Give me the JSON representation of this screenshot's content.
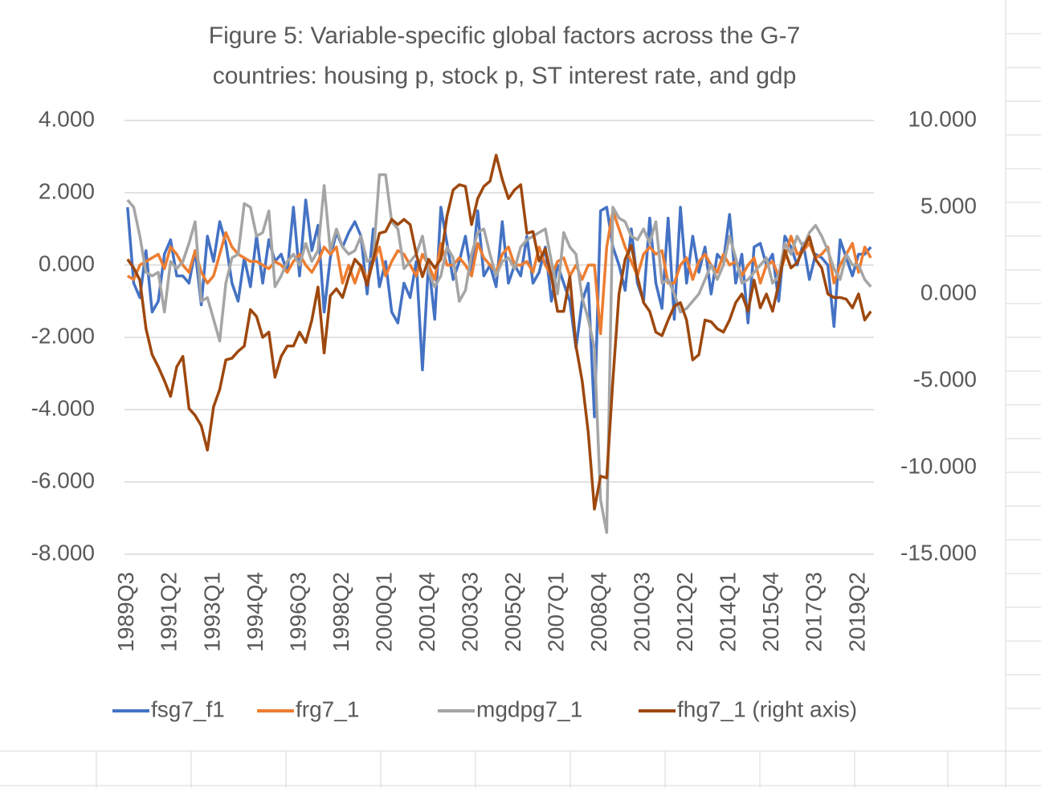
{
  "chart_data": {
    "type": "line",
    "title": [
      "Figure 5: Variable-specific global factors across the G-7",
      "countries: housing p, stock p, ST interest rate, and gdp"
    ],
    "categories": [
      "1989Q3",
      null,
      null,
      null,
      null,
      null,
      null,
      "1991Q2",
      null,
      null,
      null,
      null,
      null,
      null,
      "1993Q1",
      null,
      null,
      null,
      null,
      null,
      null,
      "1994Q4",
      null,
      null,
      null,
      null,
      null,
      null,
      "1996Q3",
      null,
      null,
      null,
      null,
      null,
      null,
      "1998Q2",
      null,
      null,
      null,
      null,
      null,
      null,
      "2000Q1",
      null,
      null,
      null,
      null,
      null,
      null,
      "2001Q4",
      null,
      null,
      null,
      null,
      null,
      null,
      "2003Q3",
      null,
      null,
      null,
      null,
      null,
      null,
      "2005Q2",
      null,
      null,
      null,
      null,
      null,
      null,
      "2007Q1",
      null,
      null,
      null,
      null,
      null,
      null,
      "2008Q4",
      null,
      null,
      null,
      null,
      null,
      null,
      "2010Q3",
      null,
      null,
      null,
      null,
      null,
      null,
      "2012Q2",
      null,
      null,
      null,
      null,
      null,
      null,
      "2014Q1",
      null,
      null,
      null,
      null,
      null,
      null,
      "2015Q4",
      null,
      null,
      null,
      null,
      null,
      null,
      "2017Q3",
      null,
      null,
      null,
      null,
      null,
      null,
      "2019Q2",
      null,
      null
    ],
    "ylim": [
      -8,
      4
    ],
    "yticks": [
      {
        "value": -8,
        "label": "-8.000"
      },
      {
        "value": -6,
        "label": "-6.000"
      },
      {
        "value": -4,
        "label": "-4.000"
      },
      {
        "value": -2,
        "label": "-2.000"
      },
      {
        "value": 0,
        "label": "0.000"
      },
      {
        "value": 2,
        "label": "2.000"
      },
      {
        "value": 4,
        "label": "4.000"
      }
    ],
    "y2lim": [
      -15,
      10
    ],
    "y2ticks": [
      {
        "value": -15,
        "label": "-15.000"
      },
      {
        "value": -10,
        "label": "-10.000"
      },
      {
        "value": -5,
        "label": "-5.000"
      },
      {
        "value": 0,
        "label": "0.000"
      },
      {
        "value": 5,
        "label": "5.000"
      },
      {
        "value": 10,
        "label": "10.000"
      }
    ],
    "grid": true,
    "legend": "bottom",
    "series": [
      {
        "name": "fsg7_f1",
        "color": "#4472c4",
        "values": [
          1.6,
          -0.5,
          -0.9,
          0.4,
          -1.3,
          -1.0,
          0.3,
          0.7,
          -0.3,
          -0.3,
          -0.5,
          0.4,
          -1.1,
          0.8,
          0.1,
          1.2,
          0.6,
          -0.5,
          -1.0,
          0.2,
          -0.6,
          0.8,
          -0.5,
          0.7,
          0.1,
          0.3,
          -0.2,
          1.6,
          -0.3,
          1.8,
          0.4,
          1.1,
          -1.3,
          0.2,
          0.9,
          0.5,
          0.9,
          1.2,
          0.8,
          -0.8,
          1.0,
          -0.6,
          0.1,
          -1.3,
          -1.6,
          -0.5,
          -0.9,
          0.1,
          -2.9,
          0.1,
          -1.5,
          1.6,
          0.6,
          -0.4,
          0.1,
          0.8,
          -0.3,
          1.5,
          -0.3,
          0.0,
          -0.6,
          1.2,
          -0.5,
          0.0,
          -0.3,
          0.8,
          -0.5,
          -0.2,
          0.5,
          -1.0,
          0.0,
          -0.5,
          -1.0,
          -2.3,
          -1.0,
          -0.5,
          -4.2,
          1.5,
          1.6,
          0.5,
          0.0,
          -0.7,
          1.0,
          -0.5,
          -1.0,
          1.3,
          -0.5,
          -1.2,
          1.3,
          -1.5,
          1.6,
          -0.5,
          0.8,
          -0.2,
          0.5,
          -0.8,
          0.3,
          0.1,
          1.4,
          -0.5,
          0.3,
          -1.6,
          0.5,
          0.6,
          0.0,
          0.3,
          -1.0,
          0.8,
          0.5,
          0.0,
          0.6,
          -0.4,
          0.3,
          0.2,
          0.0,
          -1.7,
          0.7,
          0.2,
          -0.3,
          0.3,
          0.3,
          0.5
        ]
      },
      {
        "name": "frg7_1",
        "color": "#ed7d31",
        "values": [
          -0.3,
          -0.4,
          0.0,
          0.1,
          0.2,
          0.3,
          -0.1,
          0.5,
          0.3,
          0.0,
          -0.2,
          0.4,
          -0.2,
          -0.5,
          -0.3,
          0.3,
          0.9,
          0.5,
          0.3,
          0.2,
          0.1,
          0.1,
          0.0,
          -0.1,
          0.1,
          0.0,
          -0.2,
          0.1,
          0.3,
          0.0,
          -0.2,
          0.1,
          0.5,
          0.3,
          0.5,
          -0.5,
          0.0,
          -0.5,
          0.0,
          -0.4,
          0.1,
          0.5,
          -0.3,
          0.1,
          0.4,
          0.3,
          0.0,
          -0.3,
          0.3,
          0.0,
          -0.4,
          0.6,
          0.0,
          0.0,
          0.2,
          0.0,
          -0.3,
          0.6,
          0.2,
          0.0,
          -0.2,
          0.3,
          0.5,
          0.0,
          0.0,
          0.1,
          -0.2,
          0.5,
          0.0,
          -0.3,
          0.1,
          0.2,
          -0.3,
          0.0,
          -0.4,
          0.0,
          0.0,
          -1.9,
          0.5,
          1.5,
          1.0,
          0.5,
          0.1,
          -0.3,
          0.3,
          0.5,
          0.3,
          0.4,
          -0.5,
          -0.5,
          0.0,
          0.2,
          -0.4,
          0.1,
          0.3,
          0.0,
          -0.2,
          0.3,
          0.0,
          0.1,
          -0.3,
          0.0,
          0.2,
          -0.5,
          0.0,
          0.1,
          -0.3,
          0.2,
          0.8,
          0.3,
          0.4,
          0.6,
          0.2,
          0.3,
          0.5,
          -0.5,
          0.0,
          0.3,
          0.6,
          -0.2,
          0.5,
          0.2
        ]
      },
      {
        "name": "mgdpg7_1",
        "color": "#a5a5a5",
        "values": [
          1.8,
          1.6,
          0.8,
          -0.2,
          -0.3,
          -0.2,
          -1.3,
          0.1,
          -0.1,
          0.1,
          0.6,
          1.2,
          -1.0,
          -0.9,
          -1.5,
          -2.1,
          -0.5,
          0.2,
          0.3,
          1.7,
          1.6,
          0.8,
          0.9,
          1.5,
          -0.6,
          -0.3,
          0.1,
          0.3,
          0.0,
          0.6,
          0.1,
          0.4,
          2.2,
          0.4,
          1.0,
          0.5,
          0.3,
          0.4,
          0.8,
          0.1,
          0.2,
          2.5,
          2.5,
          1.2,
          1.0,
          -0.1,
          0.1,
          0.3,
          0.8,
          -0.2,
          -0.6,
          -0.3,
          0.5,
          0.2,
          -1.0,
          -0.7,
          0.3,
          0.9,
          1.0,
          0.3,
          -0.3,
          0.1,
          0.2,
          -0.1,
          0.5,
          0.7,
          0.8,
          0.9,
          1.0,
          0.1,
          -0.8,
          0.9,
          0.5,
          0.3,
          -0.9,
          -1.5,
          -2.3,
          -6.5,
          -7.4,
          1.6,
          1.3,
          1.2,
          0.8,
          0.7,
          1.0,
          0.6,
          1.2,
          -0.5,
          -0.4,
          -0.8,
          -1.3,
          -1.2,
          -1.0,
          -0.8,
          -0.4,
          0.0,
          -0.4,
          0.0,
          0.8,
          0.2,
          -0.5,
          -0.4,
          -0.2,
          0.0,
          0.2,
          -0.5,
          -0.3,
          0.6,
          0.3,
          0.8,
          0.5,
          0.9,
          1.1,
          0.8,
          0.4,
          -0.1,
          -0.4,
          0.3,
          0.0,
          0.0,
          -0.4,
          -0.6
        ]
      },
      {
        "name": "fhg7_1 (right axis)",
        "color": "#9e480e",
        "axis": "y2",
        "values": [
          2.0,
          1.5,
          0.8,
          -2.0,
          -3.5,
          -4.2,
          -5.0,
          -5.9,
          -4.2,
          -3.6,
          -6.6,
          -7.0,
          -7.6,
          -9.0,
          -6.5,
          -5.5,
          -3.8,
          -3.7,
          -3.3,
          -3.0,
          -0.9,
          -1.3,
          -2.5,
          -2.2,
          -4.8,
          -3.6,
          -3.0,
          -3.0,
          -2.2,
          -2.8,
          -1.5,
          0.4,
          -3.4,
          -0.1,
          0.3,
          -0.2,
          1.0,
          2.0,
          1.6,
          0.5,
          2.0,
          3.5,
          3.6,
          4.3,
          4.0,
          4.3,
          4.0,
          2.3,
          1.0,
          2.0,
          1.5,
          2.0,
          4.5,
          6.0,
          6.3,
          6.2,
          4.0,
          5.5,
          6.2,
          6.5,
          8.0,
          6.6,
          5.5,
          6.0,
          6.3,
          3.5,
          3.6,
          1.9,
          2.6,
          1.0,
          -1.0,
          -1.0,
          1.0,
          -3.0,
          -5.0,
          -8.0,
          -12.4,
          -10.5,
          -10.6,
          -5.0,
          0.0,
          2.0,
          2.8,
          1.0,
          -0.5,
          -1.0,
          -2.2,
          -2.4,
          -1.5,
          -0.7,
          -0.5,
          -1.5,
          -3.8,
          -3.5,
          -1.5,
          -1.6,
          -2.0,
          -2.2,
          -1.5,
          -0.5,
          0.0,
          -1.0,
          0.8,
          -0.8,
          0.0,
          -1.0,
          0.6,
          2.5,
          1.5,
          1.8,
          2.6,
          3.3,
          2.0,
          1.5,
          0.0,
          -0.2,
          -0.2,
          -0.3,
          -0.8,
          0.0,
          -1.5,
          -1.0
        ]
      }
    ]
  }
}
